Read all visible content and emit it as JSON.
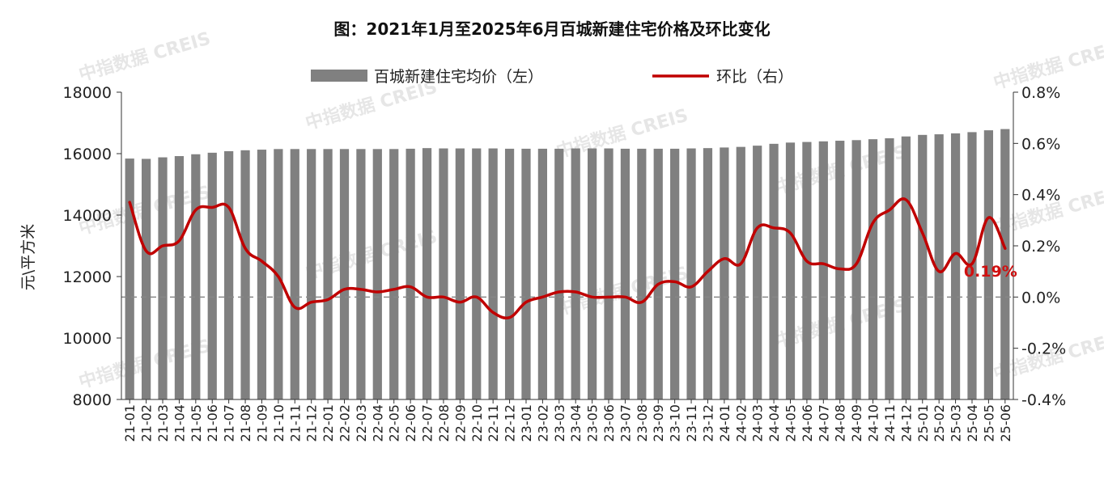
{
  "chart_data": {
    "type": "bar",
    "title": "图：2021年1月至2025年6月百城新建住宅价格及环比变化",
    "ylabel_left": "元\\平方米",
    "ylim_left": [
      8000,
      18000
    ],
    "yticks_left": [
      "8000",
      "10000",
      "12000",
      "14000",
      "16000",
      "18000"
    ],
    "ylim_right": [
      -0.4,
      0.8
    ],
    "yticks_right": [
      "-0.4%",
      "-0.2%",
      "0.0%",
      "0.2%",
      "0.4%",
      "0.6%",
      "0.8%"
    ],
    "categories": [
      "21-01",
      "21-02",
      "21-03",
      "21-04",
      "21-05",
      "21-06",
      "21-07",
      "21-08",
      "21-09",
      "21-10",
      "21-11",
      "21-12",
      "22-01",
      "22-02",
      "22-03",
      "22-04",
      "22-05",
      "22-06",
      "22-07",
      "22-08",
      "22-09",
      "22-10",
      "22-11",
      "22-12",
      "23-01",
      "23-02",
      "23-03",
      "23-04",
      "23-05",
      "23-06",
      "23-07",
      "23-08",
      "23-09",
      "23-10",
      "23-11",
      "23-12",
      "24-01",
      "24-02",
      "24-03",
      "24-04",
      "24-05",
      "24-06",
      "24-07",
      "24-08",
      "24-09",
      "24-10",
      "24-11",
      "24-12",
      "25-01",
      "25-02",
      "25-03",
      "25-04",
      "25-05",
      "25-06"
    ],
    "series": [
      {
        "name": "百城新建住宅均价（左）",
        "type": "bar",
        "axis": "left",
        "color": "#808080",
        "values": [
          15840,
          15830,
          15880,
          15920,
          15980,
          16030,
          16080,
          16110,
          16130,
          16150,
          16150,
          16150,
          16150,
          16150,
          16150,
          16150,
          16150,
          16160,
          16180,
          16170,
          16170,
          16170,
          16170,
          16160,
          16160,
          16160,
          16160,
          16170,
          16170,
          16170,
          16160,
          16160,
          16160,
          16160,
          16170,
          16180,
          16200,
          16220,
          16260,
          16320,
          16360,
          16380,
          16400,
          16420,
          16440,
          16470,
          16500,
          16560,
          16610,
          16630,
          16660,
          16700,
          16760,
          16800
        ]
      },
      {
        "name": "环比（右）",
        "type": "line",
        "axis": "right",
        "color": "#c00000",
        "values": [
          0.37,
          0.18,
          0.2,
          0.22,
          0.34,
          0.35,
          0.35,
          0.19,
          0.14,
          0.08,
          -0.04,
          -0.02,
          -0.01,
          0.03,
          0.03,
          0.02,
          0.03,
          0.04,
          0.0,
          0.0,
          -0.02,
          0.0,
          -0.06,
          -0.08,
          -0.02,
          0.0,
          0.02,
          0.02,
          0.0,
          0.0,
          0.0,
          -0.02,
          0.05,
          0.06,
          0.04,
          0.1,
          0.15,
          0.13,
          0.27,
          0.27,
          0.25,
          0.14,
          0.13,
          0.11,
          0.13,
          0.29,
          0.34,
          0.38,
          0.25,
          0.1,
          0.17,
          0.13,
          0.31,
          0.19
        ]
      }
    ],
    "annotation": {
      "text": "0.19%",
      "category": "25-06",
      "color": "#d01010"
    },
    "baseline_right": 0.0,
    "watermark": "中指数据 CREIS",
    "legend_position": "top-center",
    "grid": false
  }
}
